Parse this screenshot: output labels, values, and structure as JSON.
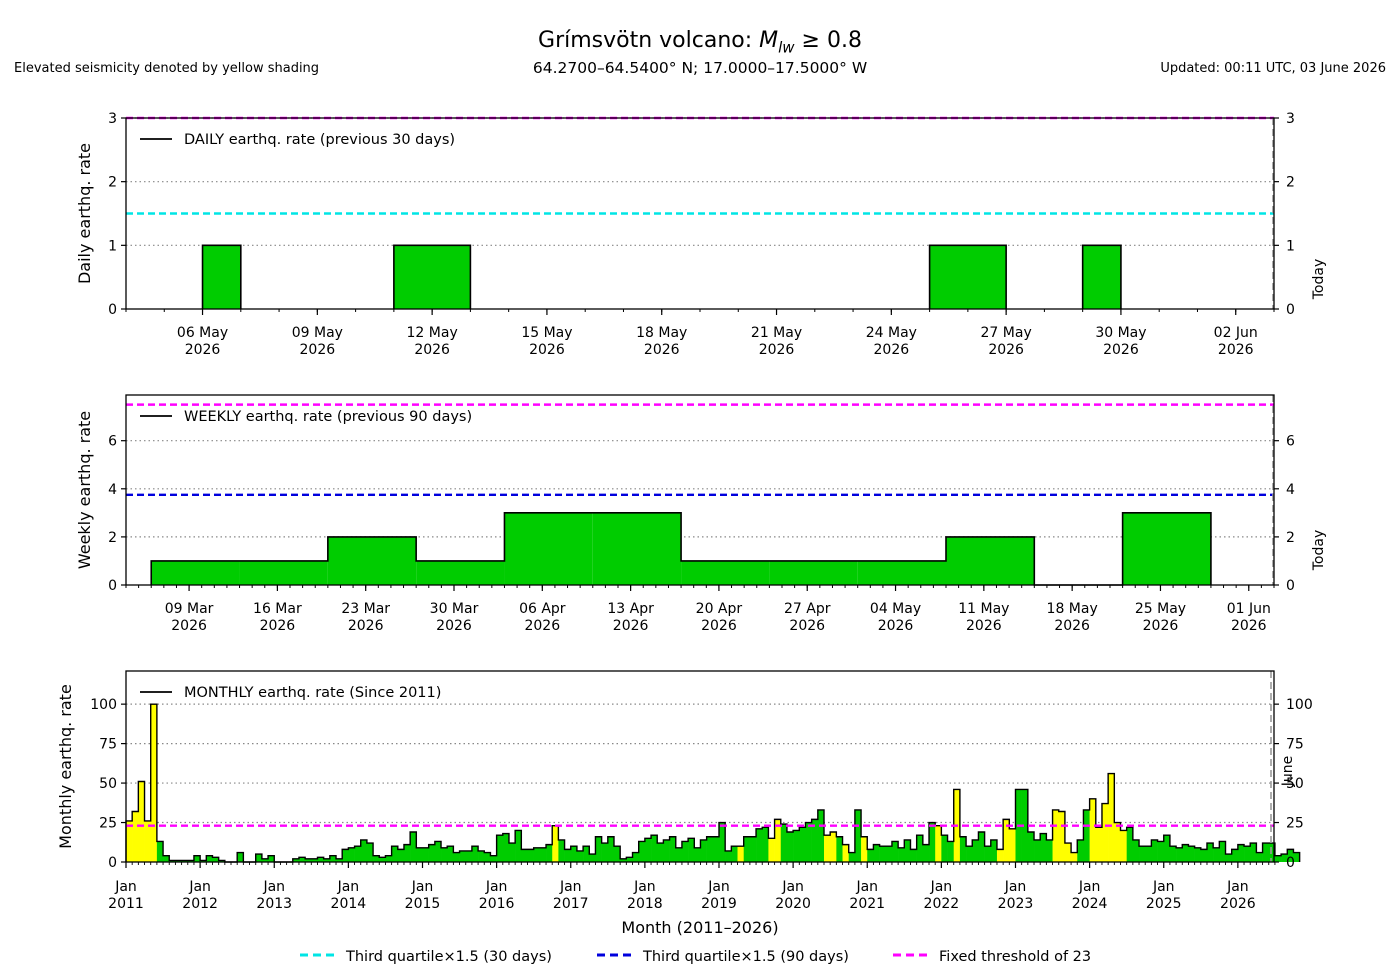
{
  "header": {
    "title": "Grímsvötn volcano: Mlw ≥ 0.8",
    "coords": "64.2700–64.5400° N; 17.0000–17.5000° W",
    "note": "Elevated seismicity denoted by yellow shading",
    "updated": "Updated: 00:11 UTC, 03 June 2026"
  },
  "colors": {
    "bar_fill": "#00cc00",
    "elevated_fill": "#ffff00",
    "q30": "#00e5e5",
    "q90": "#0000dd",
    "fixed": "#ff00ff",
    "today": "#999999"
  },
  "legend": [
    {
      "label": "Third quartile×1.5 (30 days)",
      "color_key": "q30"
    },
    {
      "label": "Third quartile×1.5 (90 days)",
      "color_key": "q90"
    },
    {
      "label": "Fixed threshold of 23",
      "color_key": "fixed"
    }
  ],
  "chart_data": [
    {
      "type": "bar",
      "ylabel": "Daily earthq. rate",
      "legend_label": "DAILY earthq. rate (previous 30 days)",
      "ylim": [
        0,
        3
      ],
      "yticks": [
        0,
        1,
        2,
        3
      ],
      "grid": true,
      "today_label": "Today",
      "x_start": "2026-05-04",
      "x_end": "2026-06-03",
      "ticks": [
        {
          "date": "2026-05-06",
          "label": [
            "06 May",
            "2026"
          ]
        },
        {
          "date": "2026-05-09",
          "label": [
            "09 May",
            "2026"
          ]
        },
        {
          "date": "2026-05-12",
          "label": [
            "12 May",
            "2026"
          ]
        },
        {
          "date": "2026-05-15",
          "label": [
            "15 May",
            "2026"
          ]
        },
        {
          "date": "2026-05-18",
          "label": [
            "18 May",
            "2026"
          ]
        },
        {
          "date": "2026-05-21",
          "label": [
            "21 May",
            "2026"
          ]
        },
        {
          "date": "2026-05-24",
          "label": [
            "24 May",
            "2026"
          ]
        },
        {
          "date": "2026-05-27",
          "label": [
            "27 May",
            "2026"
          ]
        },
        {
          "date": "2026-05-30",
          "label": [
            "30 May",
            "2026"
          ]
        },
        {
          "date": "2026-06-02",
          "label": [
            "02 Jun",
            "2026"
          ]
        }
      ],
      "bars": [
        {
          "start": "2026-05-06",
          "end": "2026-05-07",
          "value": 1
        },
        {
          "start": "2026-05-11",
          "end": "2026-05-13",
          "value": 1
        },
        {
          "start": "2026-05-25",
          "end": "2026-05-27",
          "value": 1
        },
        {
          "start": "2026-05-29",
          "end": "2026-05-30",
          "value": 1
        }
      ],
      "thresholds": [
        {
          "value": 1.5,
          "color_key": "q30"
        },
        {
          "value": 3,
          "color_key": "fixed"
        }
      ]
    },
    {
      "type": "bar",
      "ylabel": "Weekly earthq. rate",
      "legend_label": "WEEKLY earthq. rate (previous 90 days)",
      "ylim": [
        0,
        7.9
      ],
      "yticks": [
        0,
        2,
        4,
        6
      ],
      "grid": true,
      "today_label": "Today",
      "x_start": "2026-03-04",
      "x_end": "2026-06-03",
      "ticks": [
        {
          "date": "2026-03-09",
          "label": [
            "09 Mar",
            "2026"
          ]
        },
        {
          "date": "2026-03-16",
          "label": [
            "16 Mar",
            "2026"
          ]
        },
        {
          "date": "2026-03-23",
          "label": [
            "23 Mar",
            "2026"
          ]
        },
        {
          "date": "2026-03-30",
          "label": [
            "30 Mar",
            "2026"
          ]
        },
        {
          "date": "2026-04-06",
          "label": [
            "06 Apr",
            "2026"
          ]
        },
        {
          "date": "2026-04-13",
          "label": [
            "13 Apr",
            "2026"
          ]
        },
        {
          "date": "2026-04-20",
          "label": [
            "20 Apr",
            "2026"
          ]
        },
        {
          "date": "2026-04-27",
          "label": [
            "27 Apr",
            "2026"
          ]
        },
        {
          "date": "2026-05-04",
          "label": [
            "04 May",
            "2026"
          ]
        },
        {
          "date": "2026-05-11",
          "label": [
            "11 May",
            "2026"
          ]
        },
        {
          "date": "2026-05-18",
          "label": [
            "18 May",
            "2026"
          ]
        },
        {
          "date": "2026-05-25",
          "label": [
            "25 May",
            "2026"
          ]
        },
        {
          "date": "2026-06-01",
          "label": [
            "01 Jun",
            "2026"
          ]
        }
      ],
      "bars": [
        {
          "start": "2026-03-06",
          "end": "2026-03-13",
          "value": 1
        },
        {
          "start": "2026-03-13",
          "end": "2026-03-20",
          "value": 1
        },
        {
          "start": "2026-03-20",
          "end": "2026-03-27",
          "value": 2
        },
        {
          "start": "2026-03-27",
          "end": "2026-04-03",
          "value": 1
        },
        {
          "start": "2026-04-03",
          "end": "2026-04-10",
          "value": 3
        },
        {
          "start": "2026-04-10",
          "end": "2026-04-17",
          "value": 3
        },
        {
          "start": "2026-04-17",
          "end": "2026-04-24",
          "value": 1
        },
        {
          "start": "2026-04-24",
          "end": "2026-05-01",
          "value": 1
        },
        {
          "start": "2026-05-01",
          "end": "2026-05-08",
          "value": 1
        },
        {
          "start": "2026-05-08",
          "end": "2026-05-15",
          "value": 2
        },
        {
          "start": "2026-05-15",
          "end": "2026-05-22",
          "value": 0
        },
        {
          "start": "2026-05-22",
          "end": "2026-05-29",
          "value": 3
        }
      ],
      "thresholds": [
        {
          "value": 3.75,
          "color_key": "q90"
        },
        {
          "value": 7.5,
          "color_key": "fixed"
        }
      ]
    },
    {
      "type": "bar",
      "ylabel": "Monthly earthq. rate",
      "xlabel": "Month (2011–2026)",
      "legend_label": "MONTHLY earthq. rate (Since 2011)",
      "ylim": [
        0,
        121
      ],
      "yticks": [
        0,
        25,
        50,
        75,
        100
      ],
      "grid": true,
      "today_label": "June",
      "start_year": 2011,
      "end_year": 2026,
      "tick_labels": [
        [
          "Jan",
          "2011"
        ],
        [
          "Jan",
          "2012"
        ],
        [
          "Jan",
          "2013"
        ],
        [
          "Jan",
          "2014"
        ],
        [
          "Jan",
          "2015"
        ],
        [
          "Jan",
          "2016"
        ],
        [
          "Jan",
          "2017"
        ],
        [
          "Jan",
          "2018"
        ],
        [
          "Jan",
          "2019"
        ],
        [
          "Jan",
          "2020"
        ],
        [
          "Jan",
          "2021"
        ],
        [
          "Jan",
          "2022"
        ],
        [
          "Jan",
          "2023"
        ],
        [
          "Jan",
          "2024"
        ],
        [
          "Jan",
          "2025"
        ],
        [
          "Jan",
          "2026"
        ]
      ],
      "values": [
        26,
        32,
        51,
        26,
        100,
        13,
        4,
        1,
        1,
        1,
        1,
        4,
        1,
        4,
        3,
        1,
        0,
        0,
        6,
        0,
        0,
        5,
        2,
        4,
        0,
        0,
        0,
        2,
        3,
        2,
        2,
        3,
        2,
        4,
        2,
        8,
        9,
        10,
        14,
        12,
        4,
        3,
        4,
        10,
        8,
        11,
        19,
        9,
        9,
        11,
        13,
        9,
        10,
        6,
        7,
        7,
        10,
        7,
        6,
        4,
        17,
        18,
        12,
        20,
        8,
        8,
        9,
        9,
        11,
        23,
        14,
        8,
        10,
        7,
        10,
        5,
        16,
        12,
        16,
        10,
        2,
        3,
        6,
        13,
        15,
        17,
        12,
        14,
        16,
        9,
        13,
        15,
        9,
        14,
        16,
        16,
        25,
        7,
        10,
        10,
        16,
        16,
        21,
        22,
        15,
        27,
        24,
        19,
        20,
        22,
        25,
        27,
        33,
        17,
        19,
        16,
        11,
        6,
        33,
        16,
        8,
        11,
        10,
        10,
        13,
        9,
        14,
        8,
        17,
        11,
        25,
        23,
        17,
        13,
        46,
        16,
        10,
        14,
        19,
        10,
        14,
        8,
        27,
        21,
        46,
        46,
        19,
        14,
        18,
        14,
        33,
        32,
        12,
        6,
        14,
        33,
        40,
        22,
        37,
        56,
        25,
        20,
        22,
        14,
        10,
        10,
        14,
        13,
        17,
        10,
        9,
        11,
        10,
        9,
        8,
        12,
        9,
        13,
        5,
        8,
        11,
        10,
        12,
        6,
        12,
        12,
        4,
        5,
        8,
        6
      ],
      "elevated": [
        0,
        1,
        2,
        3,
        4,
        69,
        99,
        104,
        105,
        113,
        114,
        116,
        119,
        131,
        134,
        141,
        142,
        143,
        150,
        151,
        152,
        153,
        156,
        157,
        158,
        159,
        160,
        161
      ],
      "thresholds": [
        {
          "value": 23,
          "color_key": "fixed"
        }
      ]
    }
  ]
}
